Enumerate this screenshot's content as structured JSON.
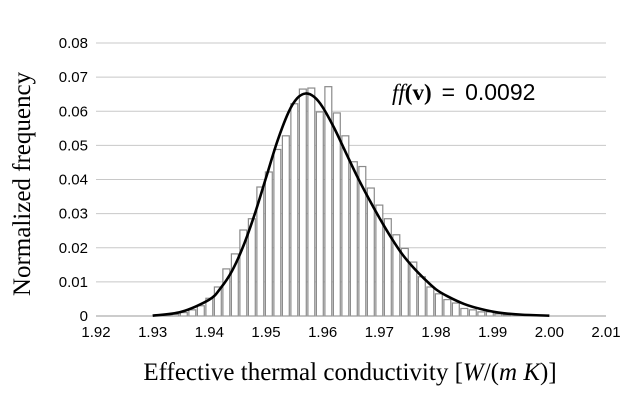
{
  "chart_data": {
    "type": "bar",
    "xlabel": {
      "prefix": "Effective thermal conductivity [",
      "unit_num": "W",
      "unit_mid": "/(",
      "unit_den": "m K",
      "suffix": ")]"
    },
    "ylabel": "Normalized frequency",
    "xlim": [
      1.92,
      2.01
    ],
    "ylim": [
      0,
      0.08
    ],
    "x_ticks": [
      "1.92",
      "1.93",
      "1.94",
      "1.95",
      "1.96",
      "1.97",
      "1.98",
      "1.99",
      "2.00",
      "2.01"
    ],
    "y_ticks": [
      "0",
      "0.01",
      "0.02",
      "0.03",
      "0.04",
      "0.05",
      "0.06",
      "0.07",
      "0.08"
    ],
    "grid": {
      "horizontal": true,
      "vertical": false
    },
    "bar_color": "#ffffff",
    "bar_edge_color": "#8a8a8a",
    "curve_color": "#000000",
    "bin_width": 0.0015,
    "bins": {
      "x": [
        1.9325,
        1.934,
        1.9355,
        1.937,
        1.9385,
        1.94,
        1.9415,
        1.943,
        1.9445,
        1.946,
        1.9475,
        1.949,
        1.9505,
        1.952,
        1.9535,
        1.955,
        1.9565,
        1.958,
        1.9595,
        1.961,
        1.9625,
        1.964,
        1.9655,
        1.967,
        1.9685,
        1.97,
        1.9715,
        1.973,
        1.9745,
        1.976,
        1.9775,
        1.979,
        1.9805,
        1.982,
        1.9835,
        1.985,
        1.9865,
        1.988,
        1.9895,
        1.991,
        1.9925
      ],
      "y": [
        0.0002,
        0.0005,
        0.001,
        0.0018,
        0.003,
        0.0052,
        0.0085,
        0.0138,
        0.0182,
        0.0252,
        0.0285,
        0.0378,
        0.0422,
        0.0488,
        0.0528,
        0.0622,
        0.0665,
        0.0668,
        0.0598,
        0.0672,
        0.0595,
        0.0528,
        0.0452,
        0.0438,
        0.0375,
        0.0325,
        0.0285,
        0.0238,
        0.0198,
        0.0158,
        0.0115,
        0.0085,
        0.0065,
        0.0048,
        0.0038,
        0.0022,
        0.0018,
        0.0012,
        0.0012,
        0.0006,
        0.0003
      ]
    },
    "fit_curve": {
      "x": [
        1.93,
        1.935,
        1.94,
        1.942,
        1.944,
        1.946,
        1.948,
        1.95,
        1.952,
        1.954,
        1.9555,
        1.957,
        1.9585,
        1.96,
        1.962,
        1.964,
        1.966,
        1.968,
        1.97,
        1.972,
        1.974,
        1.976,
        1.978,
        1.98,
        1.982,
        1.985,
        1.988,
        1.991,
        1.995,
        2.0
      ],
      "y": [
        0.0001,
        0.0012,
        0.0048,
        0.0082,
        0.0132,
        0.0205,
        0.0298,
        0.0405,
        0.0512,
        0.0598,
        0.0638,
        0.0652,
        0.0642,
        0.0612,
        0.0552,
        0.0482,
        0.0412,
        0.0348,
        0.0288,
        0.0232,
        0.0182,
        0.0142,
        0.0108,
        0.0078,
        0.0058,
        0.0035,
        0.002,
        0.001,
        0.0004,
        0.0001
      ]
    },
    "annotation": {
      "func": "ff",
      "open_paren": "(",
      "arg": "v",
      "close": ")",
      "equals": "=",
      "value": "0.0092"
    }
  }
}
